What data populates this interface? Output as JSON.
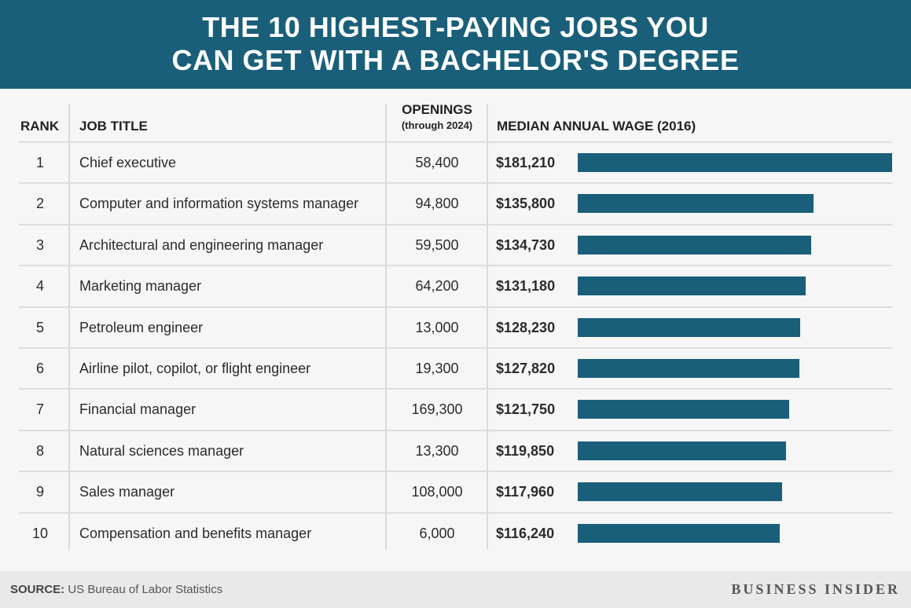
{
  "header": {
    "line1": "THE 10 HIGHEST-PAYING JOBS YOU",
    "line2": "CAN GET WITH A BACHELOR'S DEGREE"
  },
  "columns": {
    "rank": "RANK",
    "job": "JOB TITLE",
    "openings": "OPENINGS",
    "openings_sub": "(through 2024)",
    "wage": "MEDIAN ANNUAL WAGE (2016)"
  },
  "chart_data": {
    "type": "bar",
    "title": "THE 10 HIGHEST-PAYING JOBS YOU CAN GET WITH A BACHELOR'S DEGREE",
    "categories": [
      "Chief executive",
      "Computer and information systems manager",
      "Architectural and engineering manager",
      "Marketing manager",
      "Petroleum engineer",
      "Airline pilot, copilot, or flight engineer",
      "Financial manager",
      "Natural sciences manager",
      "Sales manager",
      "Compensation and benefits manager"
    ],
    "series": [
      {
        "name": "MEDIAN ANNUAL WAGE (2016)",
        "values": [
          181210,
          135800,
          134730,
          131180,
          128230,
          127820,
          121750,
          119850,
          117960,
          116240
        ]
      }
    ],
    "xlim": [
      0,
      181210
    ],
    "bar_color": "#1a5f7a",
    "rows": [
      {
        "rank": "1",
        "job": "Chief executive",
        "openings": "58,400",
        "wage": "$181,210"
      },
      {
        "rank": "2",
        "job": "Computer and information systems manager",
        "openings": "94,800",
        "wage": "$135,800"
      },
      {
        "rank": "3",
        "job": "Architectural and engineering manager",
        "openings": "59,500",
        "wage": "$134,730"
      },
      {
        "rank": "4",
        "job": "Marketing manager",
        "openings": "64,200",
        "wage": "$131,180"
      },
      {
        "rank": "5",
        "job": "Petroleum engineer",
        "openings": "13,000",
        "wage": "$128,230"
      },
      {
        "rank": "6",
        "job": "Airline pilot, copilot, or flight engineer",
        "openings": "19,300",
        "wage": "$127,820"
      },
      {
        "rank": "7",
        "job": "Financial manager",
        "openings": "169,300",
        "wage": "$121,750"
      },
      {
        "rank": "8",
        "job": "Natural sciences manager",
        "openings": "13,300",
        "wage": "$119,850"
      },
      {
        "rank": "9",
        "job": "Sales manager",
        "openings": "108,000",
        "wage": "$117,960"
      },
      {
        "rank": "10",
        "job": "Compensation and benefits manager",
        "openings": "6,000",
        "wage": "$116,240"
      }
    ]
  },
  "footer": {
    "source_label": "SOURCE:",
    "source_text": " US Bureau of Labor Statistics",
    "brand": "BUSINESS INSIDER"
  },
  "colors": {
    "header_bg": "#1a5f7a",
    "bar": "#1a5f7a"
  }
}
